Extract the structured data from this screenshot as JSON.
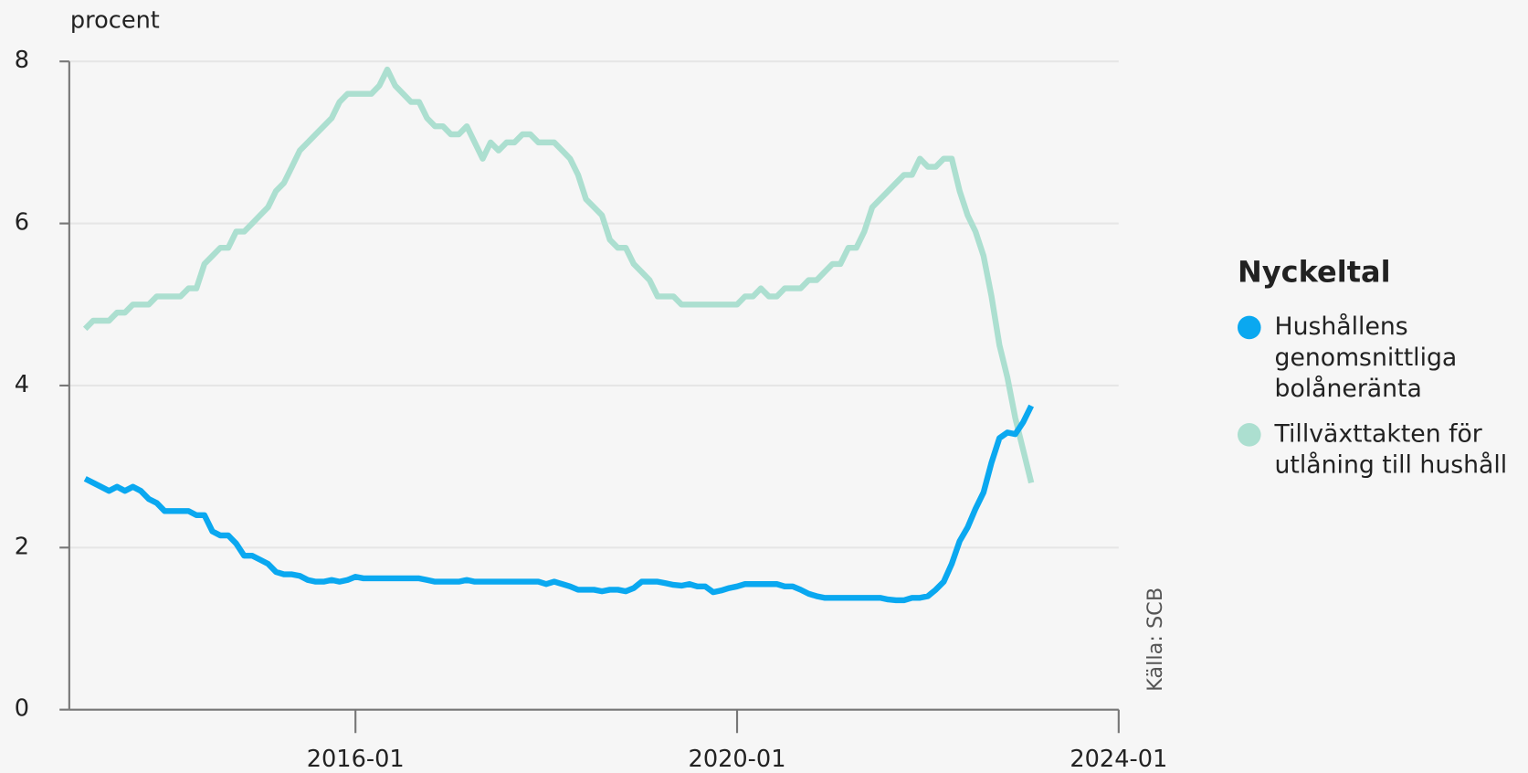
{
  "chart_data": {
    "type": "line",
    "y_label": "procent",
    "legend_title": "Nyckeltal",
    "source": "Källa: SCB",
    "legend": "right",
    "grid": true,
    "xlim": [
      "2013-01",
      "2024-01"
    ],
    "xticks": [
      "2016-01",
      "2020-01",
      "2024-01"
    ],
    "ylim": [
      0,
      8
    ],
    "yticks": [
      0,
      2,
      4,
      6,
      8
    ],
    "x": [
      "2013-03",
      "2013-04",
      "2013-05",
      "2013-06",
      "2013-07",
      "2013-08",
      "2013-09",
      "2013-10",
      "2013-11",
      "2013-12",
      "2014-01",
      "2014-02",
      "2014-03",
      "2014-04",
      "2014-05",
      "2014-06",
      "2014-07",
      "2014-08",
      "2014-09",
      "2014-10",
      "2014-11",
      "2014-12",
      "2015-01",
      "2015-02",
      "2015-03",
      "2015-04",
      "2015-05",
      "2015-06",
      "2015-07",
      "2015-08",
      "2015-09",
      "2015-10",
      "2015-11",
      "2015-12",
      "2016-01",
      "2016-02",
      "2016-03",
      "2016-04",
      "2016-05",
      "2016-06",
      "2016-07",
      "2016-08",
      "2016-09",
      "2016-10",
      "2016-11",
      "2016-12",
      "2017-01",
      "2017-02",
      "2017-03",
      "2017-04",
      "2017-05",
      "2017-06",
      "2017-07",
      "2017-08",
      "2017-09",
      "2017-10",
      "2017-11",
      "2017-12",
      "2018-01",
      "2018-02",
      "2018-03",
      "2018-04",
      "2018-05",
      "2018-06",
      "2018-07",
      "2018-08",
      "2018-09",
      "2018-10",
      "2018-11",
      "2018-12",
      "2019-01",
      "2019-02",
      "2019-03",
      "2019-04",
      "2019-05",
      "2019-06",
      "2019-07",
      "2019-08",
      "2019-09",
      "2019-10",
      "2019-11",
      "2019-12",
      "2020-01",
      "2020-02",
      "2020-03",
      "2020-04",
      "2020-05",
      "2020-06",
      "2020-07",
      "2020-08",
      "2020-09",
      "2020-10",
      "2020-11",
      "2020-12",
      "2021-01",
      "2021-02",
      "2021-03",
      "2021-04",
      "2021-05",
      "2021-06",
      "2021-07",
      "2021-08",
      "2021-09",
      "2021-10",
      "2021-11",
      "2021-12",
      "2022-01",
      "2022-02",
      "2022-03",
      "2022-04",
      "2022-05",
      "2022-06",
      "2022-07",
      "2022-08",
      "2022-09",
      "2022-10",
      "2022-11",
      "2022-12",
      "2023-01",
      "2023-02"
    ],
    "series": [
      {
        "name": "Hushållens genomsnittliga bolåneränta",
        "color": "#0aa8f0",
        "values": [
          2.85,
          2.8,
          2.75,
          2.7,
          2.75,
          2.7,
          2.75,
          2.7,
          2.6,
          2.55,
          2.45,
          2.45,
          2.45,
          2.45,
          2.4,
          2.4,
          2.2,
          2.15,
          2.15,
          2.05,
          1.9,
          1.9,
          1.85,
          1.8,
          1.7,
          1.67,
          1.67,
          1.65,
          1.6,
          1.58,
          1.58,
          1.6,
          1.58,
          1.6,
          1.64,
          1.62,
          1.62,
          1.62,
          1.62,
          1.62,
          1.62,
          1.62,
          1.62,
          1.6,
          1.58,
          1.58,
          1.58,
          1.58,
          1.6,
          1.58,
          1.58,
          1.58,
          1.58,
          1.58,
          1.58,
          1.58,
          1.58,
          1.58,
          1.55,
          1.58,
          1.55,
          1.52,
          1.48,
          1.48,
          1.48,
          1.46,
          1.48,
          1.48,
          1.46,
          1.5,
          1.58,
          1.58,
          1.58,
          1.56,
          1.54,
          1.53,
          1.55,
          1.52,
          1.52,
          1.45,
          1.47,
          1.5,
          1.52,
          1.55,
          1.55,
          1.55,
          1.55,
          1.55,
          1.52,
          1.52,
          1.48,
          1.43,
          1.4,
          1.38,
          1.38,
          1.38,
          1.38,
          1.38,
          1.38,
          1.38,
          1.38,
          1.36,
          1.35,
          1.35,
          1.38,
          1.38,
          1.4,
          1.48,
          1.58,
          1.8,
          2.08,
          2.25,
          2.48,
          2.68,
          3.05,
          3.35,
          3.42,
          3.4,
          3.55,
          3.75
        ]
      },
      {
        "name": "Tillväxttakten för utlåning till hushåll",
        "color": "#acdfd0",
        "values": [
          4.7,
          4.8,
          4.8,
          4.8,
          4.9,
          4.9,
          5.0,
          5.0,
          5.0,
          5.1,
          5.1,
          5.1,
          5.1,
          5.2,
          5.2,
          5.5,
          5.6,
          5.7,
          5.7,
          5.9,
          5.9,
          6.0,
          6.1,
          6.2,
          6.4,
          6.5,
          6.7,
          6.9,
          7.0,
          7.1,
          7.2,
          7.3,
          7.5,
          7.6,
          7.6,
          7.6,
          7.6,
          7.7,
          7.9,
          7.7,
          7.6,
          7.5,
          7.5,
          7.3,
          7.2,
          7.2,
          7.1,
          7.1,
          7.2,
          7.0,
          6.8,
          7.0,
          6.9,
          7.0,
          7.0,
          7.1,
          7.1,
          7.0,
          7.0,
          7.0,
          6.9,
          6.8,
          6.6,
          6.3,
          6.2,
          6.1,
          5.8,
          5.7,
          5.7,
          5.5,
          5.4,
          5.3,
          5.1,
          5.1,
          5.1,
          5.0,
          5.0,
          5.0,
          5.0,
          5.0,
          5.0,
          5.0,
          5.0,
          5.1,
          5.1,
          5.2,
          5.1,
          5.1,
          5.2,
          5.2,
          5.2,
          5.3,
          5.3,
          5.4,
          5.5,
          5.5,
          5.7,
          5.7,
          5.9,
          6.2,
          6.3,
          6.4,
          6.5,
          6.6,
          6.6,
          6.8,
          6.7,
          6.7,
          6.8,
          6.8,
          6.4,
          6.1,
          5.9,
          5.6,
          5.1,
          4.5,
          4.1,
          3.6,
          3.2,
          2.8
        ]
      }
    ]
  }
}
